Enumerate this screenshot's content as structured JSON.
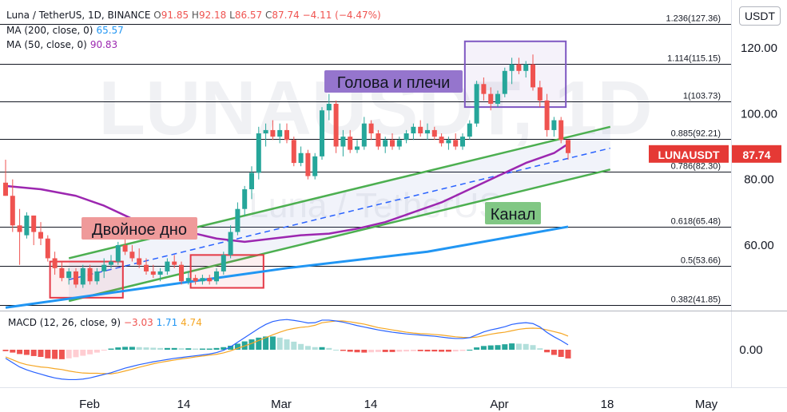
{
  "header": {
    "title": "Luna / TetherUS, 1D, BINANCE",
    "open_label": "O",
    "open": "91.85",
    "high_label": "H",
    "high": "92.18",
    "low_label": "L",
    "low": "86.57",
    "close_label": "C",
    "close": "87.74",
    "change": "−4.11 (−4.47%)",
    "ma200_label": "MA (200, close, 0)",
    "ma200_value": "65.57",
    "ma50_label": "MA (50, close, 0)",
    "ma50_value": "90.83"
  },
  "currency_button": "USDT",
  "watermark": {
    "symbol": "LUNAUSDT, 1D",
    "name": "Luna / TetherUS"
  },
  "price_tag": {
    "symbol": "LUNAUSDT",
    "value": "87.74"
  },
  "price_axis": {
    "ticks": [
      "120.00",
      "100.00",
      "80.00",
      "60.00"
    ]
  },
  "macd": {
    "label": "MACD (12, 26, close, 9)",
    "hist": "−3.03",
    "macd": "1.71",
    "signal": "4.74",
    "axis_tick": "0.00"
  },
  "time_axis": [
    "Feb",
    "14",
    "Mar",
    "14",
    "Apr",
    "18",
    "May"
  ],
  "fib_levels": [
    {
      "label": "1.236(127.36)",
      "price": 127.36
    },
    {
      "label": "1.114(115.15)",
      "price": 115.15
    },
    {
      "label": "1(103.73)",
      "price": 103.73
    },
    {
      "label": "0.885(92.21)",
      "price": 92.21
    },
    {
      "label": "0.786(82.30)",
      "price": 82.3
    },
    {
      "label": "0.618(65.48)",
      "price": 65.48
    },
    {
      "label": "0.5(53.66)",
      "price": 53.66
    },
    {
      "label": "0.382(41.85)",
      "price": 41.85
    }
  ],
  "annotations": {
    "head_shoulders": "Голова и плечи",
    "double_bottom": "Двойное дно",
    "channel": "Канал"
  },
  "colors": {
    "up": "#26a69a",
    "down": "#ef5350",
    "ma200": "#2196f3",
    "ma50": "#9c27b0",
    "channel": "#4caf50",
    "macd_line": "#2962ff",
    "signal_line": "#f5a623",
    "hs_fill": "#7e57c2",
    "db_box": "#e53946"
  },
  "chart_data": {
    "type": "candlestick",
    "title": "Luna / TetherUS, 1D, BINANCE",
    "exchange": "BINANCE",
    "interval": "1D",
    "ylim": [
      37,
      135
    ],
    "candles": [
      {
        "o": 79,
        "h": 86,
        "l": 75,
        "c": 75
      },
      {
        "o": 75,
        "h": 80,
        "l": 64,
        "c": 66
      },
      {
        "o": 66,
        "h": 71,
        "l": 54,
        "c": 64
      },
      {
        "o": 63,
        "h": 70,
        "l": 62,
        "c": 69
      },
      {
        "o": 69,
        "h": 69,
        "l": 60,
        "c": 64
      },
      {
        "o": 64,
        "h": 67,
        "l": 60,
        "c": 62
      },
      {
        "o": 62,
        "h": 63,
        "l": 55,
        "c": 56
      },
      {
        "o": 56,
        "h": 58,
        "l": 51,
        "c": 53
      },
      {
        "o": 53,
        "h": 55,
        "l": 49,
        "c": 50
      },
      {
        "o": 50,
        "h": 53,
        "l": 48,
        "c": 52
      },
      {
        "o": 52,
        "h": 53,
        "l": 47,
        "c": 48
      },
      {
        "o": 48,
        "h": 54,
        "l": 47,
        "c": 53
      },
      {
        "o": 53,
        "h": 54,
        "l": 48,
        "c": 49
      },
      {
        "o": 49,
        "h": 53,
        "l": 48,
        "c": 52
      },
      {
        "o": 52,
        "h": 56,
        "l": 50,
        "c": 54
      },
      {
        "o": 54,
        "h": 57,
        "l": 53,
        "c": 55
      },
      {
        "o": 55,
        "h": 61,
        "l": 54,
        "c": 60
      },
      {
        "o": 60,
        "h": 62,
        "l": 57,
        "c": 58
      },
      {
        "o": 58,
        "h": 60,
        "l": 55,
        "c": 56
      },
      {
        "o": 56,
        "h": 59,
        "l": 53,
        "c": 54
      },
      {
        "o": 54,
        "h": 56,
        "l": 51,
        "c": 52
      },
      {
        "o": 52,
        "h": 54,
        "l": 50,
        "c": 51
      },
      {
        "o": 51,
        "h": 53,
        "l": 49,
        "c": 52
      },
      {
        "o": 52,
        "h": 56,
        "l": 51,
        "c": 55
      },
      {
        "o": 55,
        "h": 57,
        "l": 53,
        "c": 54
      },
      {
        "o": 54,
        "h": 55,
        "l": 48,
        "c": 49
      },
      {
        "o": 49,
        "h": 52,
        "l": 48,
        "c": 50
      },
      {
        "o": 50,
        "h": 51,
        "l": 48,
        "c": 49
      },
      {
        "o": 49,
        "h": 51,
        "l": 48,
        "c": 50
      },
      {
        "o": 50,
        "h": 51,
        "l": 48,
        "c": 49
      },
      {
        "o": 49,
        "h": 53,
        "l": 48,
        "c": 52
      },
      {
        "o": 52,
        "h": 58,
        "l": 51,
        "c": 57
      },
      {
        "o": 57,
        "h": 66,
        "l": 56,
        "c": 64
      },
      {
        "o": 64,
        "h": 73,
        "l": 63,
        "c": 71
      },
      {
        "o": 71,
        "h": 78,
        "l": 69,
        "c": 77
      },
      {
        "o": 77,
        "h": 84,
        "l": 74,
        "c": 82
      },
      {
        "o": 82,
        "h": 96,
        "l": 80,
        "c": 94
      },
      {
        "o": 94,
        "h": 97,
        "l": 90,
        "c": 95
      },
      {
        "o": 95,
        "h": 98,
        "l": 92,
        "c": 93
      },
      {
        "o": 93,
        "h": 97,
        "l": 91,
        "c": 95
      },
      {
        "o": 95,
        "h": 97,
        "l": 91,
        "c": 92
      },
      {
        "o": 92,
        "h": 93,
        "l": 84,
        "c": 85
      },
      {
        "o": 85,
        "h": 90,
        "l": 84,
        "c": 88
      },
      {
        "o": 88,
        "h": 89,
        "l": 80,
        "c": 81
      },
      {
        "o": 81,
        "h": 88,
        "l": 80,
        "c": 87
      },
      {
        "o": 87,
        "h": 102,
        "l": 86,
        "c": 101
      },
      {
        "o": 101,
        "h": 106,
        "l": 98,
        "c": 103
      },
      {
        "o": 103,
        "h": 104,
        "l": 88,
        "c": 90
      },
      {
        "o": 90,
        "h": 95,
        "l": 87,
        "c": 93
      },
      {
        "o": 93,
        "h": 95,
        "l": 88,
        "c": 89
      },
      {
        "o": 89,
        "h": 92,
        "l": 88,
        "c": 90
      },
      {
        "o": 90,
        "h": 99,
        "l": 89,
        "c": 97
      },
      {
        "o": 97,
        "h": 98,
        "l": 92,
        "c": 94
      },
      {
        "o": 94,
        "h": 95,
        "l": 89,
        "c": 90
      },
      {
        "o": 90,
        "h": 93,
        "l": 88,
        "c": 92
      },
      {
        "o": 92,
        "h": 94,
        "l": 89,
        "c": 90
      },
      {
        "o": 90,
        "h": 93,
        "l": 89,
        "c": 92
      },
      {
        "o": 92,
        "h": 95,
        "l": 91,
        "c": 94
      },
      {
        "o": 94,
        "h": 97,
        "l": 92,
        "c": 96
      },
      {
        "o": 96,
        "h": 98,
        "l": 93,
        "c": 94
      },
      {
        "o": 94,
        "h": 97,
        "l": 92,
        "c": 95
      },
      {
        "o": 95,
        "h": 96,
        "l": 92,
        "c": 93
      },
      {
        "o": 93,
        "h": 94,
        "l": 90,
        "c": 91
      },
      {
        "o": 91,
        "h": 93,
        "l": 89,
        "c": 92
      },
      {
        "o": 92,
        "h": 94,
        "l": 89,
        "c": 90
      },
      {
        "o": 90,
        "h": 94,
        "l": 89,
        "c": 93
      },
      {
        "o": 93,
        "h": 98,
        "l": 92,
        "c": 97
      },
      {
        "o": 97,
        "h": 110,
        "l": 96,
        "c": 109
      },
      {
        "o": 109,
        "h": 111,
        "l": 104,
        "c": 106
      },
      {
        "o": 106,
        "h": 108,
        "l": 101,
        "c": 103
      },
      {
        "o": 103,
        "h": 107,
        "l": 102,
        "c": 106
      },
      {
        "o": 106,
        "h": 114,
        "l": 105,
        "c": 113
      },
      {
        "o": 113,
        "h": 117,
        "l": 109,
        "c": 115
      },
      {
        "o": 115,
        "h": 117,
        "l": 112,
        "c": 113
      },
      {
        "o": 113,
        "h": 116,
        "l": 111,
        "c": 115
      },
      {
        "o": 115,
        "h": 118,
        "l": 107,
        "c": 108
      },
      {
        "o": 108,
        "h": 110,
        "l": 102,
        "c": 104
      },
      {
        "o": 104,
        "h": 106,
        "l": 93,
        "c": 95
      },
      {
        "o": 95,
        "h": 99,
        "l": 93,
        "c": 98
      },
      {
        "o": 98,
        "h": 99,
        "l": 91,
        "c": 92
      },
      {
        "o": 92,
        "h": 92,
        "l": 86,
        "c": 88
      }
    ],
    "ma200": [
      [
        0,
        41
      ],
      [
        20,
        47
      ],
      [
        40,
        53
      ],
      [
        60,
        58
      ],
      [
        80,
        65.6
      ]
    ],
    "ma50": [
      [
        0,
        78
      ],
      [
        5,
        77
      ],
      [
        10,
        75
      ],
      [
        14,
        72
      ],
      [
        18,
        68
      ],
      [
        22,
        66
      ],
      [
        26,
        64
      ],
      [
        30,
        62
      ],
      [
        34,
        61
      ],
      [
        38,
        62
      ],
      [
        42,
        63
      ],
      [
        46,
        63.5
      ],
      [
        50,
        65
      ],
      [
        54,
        67
      ],
      [
        58,
        70
      ],
      [
        62,
        73
      ],
      [
        66,
        77
      ],
      [
        70,
        81
      ],
      [
        74,
        85
      ],
      [
        78,
        88
      ],
      [
        80,
        90.8
      ]
    ],
    "channel": {
      "upper": [
        [
          9,
          56
        ],
        [
          86,
          96
        ]
      ],
      "lower": [
        [
          9,
          43
        ],
        [
          86,
          83
        ]
      ],
      "mid": [
        [
          9,
          49.5
        ],
        [
          86,
          89.5
        ]
      ]
    },
    "macd": {
      "ylim": [
        -12,
        14
      ],
      "hist": [
        -0.5,
        -1,
        -1.5,
        -1.8,
        -2.2,
        -2.5,
        -3,
        -3.2,
        -3.3,
        -3,
        -2.6,
        -2.1,
        -1.6,
        -1,
        -0.3,
        0.4,
        0.8,
        1,
        1,
        0.9,
        0.8,
        0.7,
        0.6,
        0.6,
        0.6,
        0.5,
        0.5,
        0.4,
        0.4,
        0.4,
        0.6,
        0.9,
        1.4,
        2.1,
        2.9,
        3.6,
        4.2,
        4.6,
        4.6,
        4.2,
        3.6,
        2.8,
        2,
        1.3,
        0.9,
        0.9,
        0.6,
        0,
        -0.4,
        -0.7,
        -0.9,
        -1,
        -0.9,
        -0.8,
        -0.8,
        -0.8,
        -0.7,
        -0.6,
        -0.5,
        -0.5,
        -0.6,
        -0.6,
        -0.7,
        -0.7,
        -0.6,
        -0.4,
        0,
        0.8,
        1.3,
        1.5,
        1.6,
        1.9,
        2.2,
        2.1,
        2,
        1.6,
        0.5,
        -0.9,
        -1.8,
        -2.5,
        -3.03
      ],
      "macd_line": [
        -3,
        -4.5,
        -6,
        -7,
        -7.8,
        -8.5,
        -9.2,
        -9.8,
        -10.2,
        -10.4,
        -10.4,
        -10.2,
        -9.8,
        -9.2,
        -8.6,
        -8,
        -7.2,
        -6.4,
        -5.8,
        -5.2,
        -4.7,
        -4.2,
        -3.8,
        -3.4,
        -3,
        -2.7,
        -2.4,
        -2.1,
        -1.8,
        -1.5,
        -1,
        -0.2,
        1,
        2.6,
        4.2,
        5.8,
        7.4,
        8.8,
        9.8,
        10.3,
        10.5,
        10.2,
        9.8,
        9.3,
        9.4,
        10.3,
        10.3,
        10,
        9.6,
        9,
        8.4,
        7.9,
        7.4,
        6.9,
        6.5,
        6.1,
        5.8,
        5.5,
        5.3,
        5.1,
        4.9,
        4.7,
        4.4,
        4.1,
        3.9,
        3.9,
        4.2,
        5.2,
        6.2,
        6.9,
        7.4,
        8,
        8.8,
        9.2,
        9.4,
        9.1,
        7.9,
        6,
        4.5,
        3.2,
        1.71
      ],
      "signal_line": [
        -2.5,
        -3.5,
        -4.5,
        -5.2,
        -5.6,
        -6,
        -6.2,
        -6.6,
        -6.9,
        -7.4,
        -7.8,
        -8.1,
        -8.2,
        -8.2,
        -8.3,
        -8.4,
        -8,
        -7.4,
        -6.8,
        -6.1,
        -5.5,
        -4.9,
        -4.4,
        -4,
        -3.6,
        -3.2,
        -2.9,
        -2.5,
        -2.2,
        -1.9,
        -1.6,
        -1.1,
        -0.4,
        0.5,
        1.3,
        2.2,
        3.2,
        4.2,
        5.2,
        6.1,
        6.9,
        7.4,
        7.8,
        8,
        8.5,
        9.4,
        9.7,
        10,
        10,
        9.7,
        9.3,
        8.9,
        8.3,
        7.7,
        7.3,
        6.9,
        6.5,
        6.1,
        5.8,
        5.6,
        5.5,
        5.3,
        5.1,
        4.8,
        4.5,
        4.3,
        4.2,
        4.4,
        4.9,
        5.4,
        5.8,
        6.1,
        6.6,
        7.1,
        7.4,
        7.5,
        7.4,
        6.9,
        6.3,
        5.7,
        4.74
      ]
    }
  }
}
